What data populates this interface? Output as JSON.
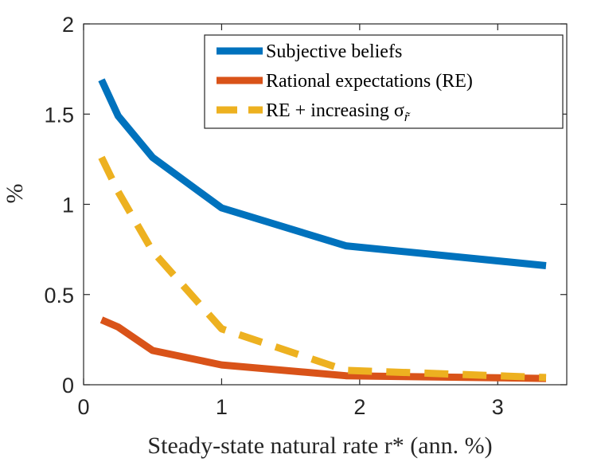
{
  "chart_data": {
    "type": "line",
    "xlabel": "Steady-state natural rate r* (ann. %)",
    "ylabel": "%",
    "xlim": [
      0,
      3.5
    ],
    "ylim": [
      0,
      2
    ],
    "xticks": [
      0,
      1,
      2,
      3
    ],
    "yticks": [
      0,
      0.5,
      1,
      1.5,
      2
    ],
    "xtick_labels": [
      "0",
      "1",
      "2",
      "3"
    ],
    "ytick_labels": [
      "0",
      "0.5",
      "1",
      "1.5",
      "2"
    ],
    "grid": false,
    "legend_position": "top-right",
    "series": [
      {
        "name": "Subjective beliefs",
        "color": "#0072BD",
        "style": "solid",
        "x": [
          0.13,
          0.25,
          0.5,
          1.0,
          1.9,
          3.35
        ],
        "y": [
          1.69,
          1.49,
          1.26,
          0.98,
          0.77,
          0.66
        ]
      },
      {
        "name": "Rational expectations (RE)",
        "color": "#D95319",
        "style": "solid",
        "x": [
          0.13,
          0.25,
          0.5,
          1.0,
          1.9,
          3.35
        ],
        "y": [
          0.36,
          0.32,
          0.19,
          0.11,
          0.05,
          0.035
        ]
      },
      {
        "name": "RE + increasing σ",
        "name_subscript": "r̃",
        "color": "#EDB120",
        "style": "dashed",
        "x": [
          0.13,
          0.25,
          0.5,
          1.0,
          1.9,
          3.35
        ],
        "y": [
          1.26,
          1.07,
          0.74,
          0.31,
          0.08,
          0.04
        ]
      }
    ]
  }
}
